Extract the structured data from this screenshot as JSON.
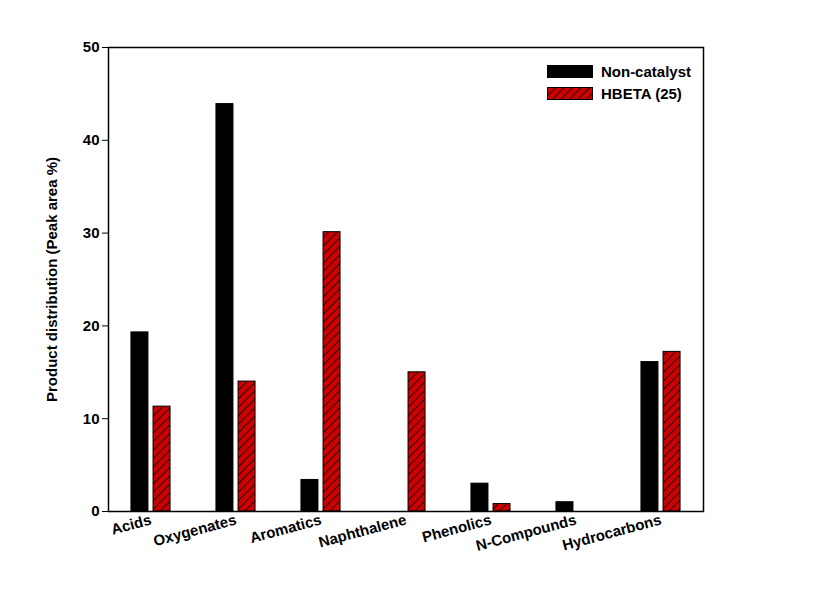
{
  "chart_data": {
    "type": "bar",
    "categories": [
      "Acids",
      "Oxygenates",
      "Aromatics",
      "Naphthalene",
      "Phenolics",
      "N-Compounds",
      "Hydrocarbons"
    ],
    "series": [
      {
        "name": "Non-catalyst",
        "color": "#000000",
        "values": [
          19.3,
          43.9,
          3.4,
          0,
          3.0,
          1.0,
          16.1
        ]
      },
      {
        "name": "HBETA (25)",
        "color": "#cc0000",
        "values": [
          11.3,
          14.0,
          30.1,
          15.0,
          0.8,
          0,
          17.2
        ]
      }
    ],
    "y_label": "Product distribution (Peak area %)",
    "ylim": [
      0,
      50
    ],
    "yticks": [
      0,
      10,
      20,
      30,
      40,
      50
    ],
    "grid": false,
    "legend": "top-right"
  }
}
